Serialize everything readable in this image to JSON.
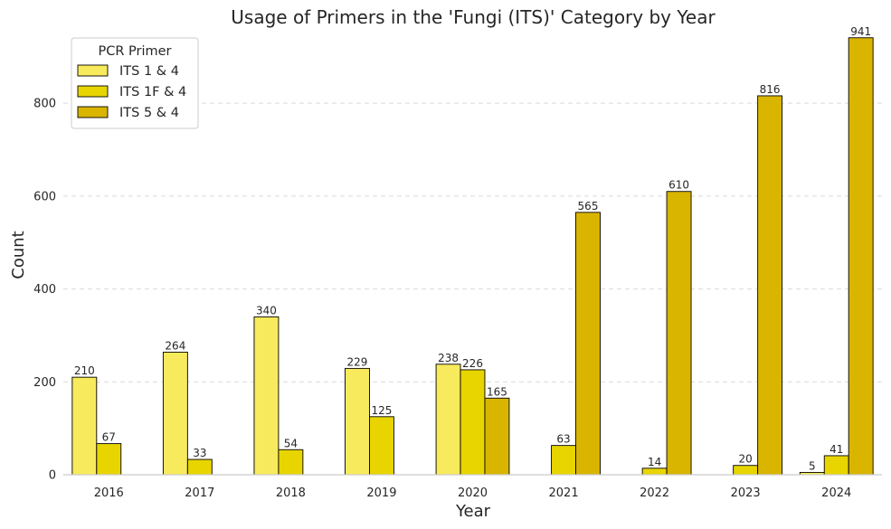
{
  "chart_data": {
    "type": "bar",
    "title": "Usage of Primers in the 'Fungi (ITS)' Category by Year",
    "xlabel": "Year",
    "ylabel": "Count",
    "categories": [
      "2016",
      "2017",
      "2018",
      "2019",
      "2020",
      "2021",
      "2022",
      "2023",
      "2024"
    ],
    "series": [
      {
        "name": "ITS 1 & 4",
        "color": "#f7ea5c",
        "values": [
          210,
          264,
          340,
          229,
          238,
          null,
          null,
          null,
          5
        ]
      },
      {
        "name": "ITS 1F & 4",
        "color": "#e8d500",
        "values": [
          67,
          33,
          54,
          125,
          226,
          63,
          14,
          20,
          41
        ]
      },
      {
        "name": "ITS 5 & 4",
        "color": "#d9b500",
        "values": [
          null,
          null,
          null,
          null,
          165,
          565,
          610,
          816,
          941
        ]
      }
    ],
    "ylim": [
      0,
      960
    ],
    "yticks": [
      0,
      200,
      400,
      600,
      800
    ],
    "grid": "horizontal dashed",
    "legend": {
      "title": "PCR Primer",
      "placement": "top-left"
    }
  }
}
